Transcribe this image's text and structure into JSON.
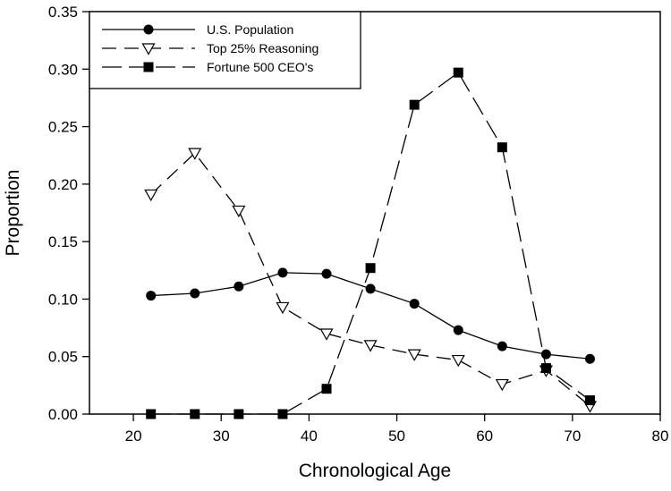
{
  "chart_data": {
    "type": "line",
    "title": "",
    "xlabel": "Chronological Age",
    "ylabel": "Proportion",
    "xlim": [
      15,
      80
    ],
    "ylim": [
      0,
      0.35
    ],
    "xticks": [
      "20",
      "30",
      "40",
      "50",
      "60",
      "70",
      "80"
    ],
    "yticks": [
      "0.00",
      "0.05",
      "0.10",
      "0.15",
      "0.20",
      "0.25",
      "0.30",
      "0.35"
    ],
    "grid": false,
    "legend_position": "top-left",
    "x": [
      22,
      27,
      32,
      37,
      42,
      47,
      52,
      57,
      62,
      67,
      72
    ],
    "series": [
      {
        "name": "U.S. Population",
        "marker": "filled-circle",
        "line_style": "solid",
        "color": "#000000",
        "values": [
          0.103,
          0.105,
          0.111,
          0.123,
          0.122,
          0.109,
          0.096,
          0.073,
          0.059,
          0.052,
          0.048
        ]
      },
      {
        "name": "Top 25% Reasoning",
        "marker": "open-triangle-down",
        "line_style": "dash-short",
        "color": "#000000",
        "values": [
          0.191,
          0.227,
          0.177,
          0.093,
          0.07,
          0.06,
          0.052,
          0.047,
          0.026,
          0.038,
          0.007
        ]
      },
      {
        "name": "Fortune 500 CEO's",
        "marker": "filled-square",
        "line_style": "dash-long",
        "color": "#000000",
        "values": [
          0.0,
          0.0,
          0.0,
          0.0,
          0.022,
          0.127,
          0.269,
          0.297,
          0.232,
          0.04,
          0.012
        ]
      }
    ]
  }
}
